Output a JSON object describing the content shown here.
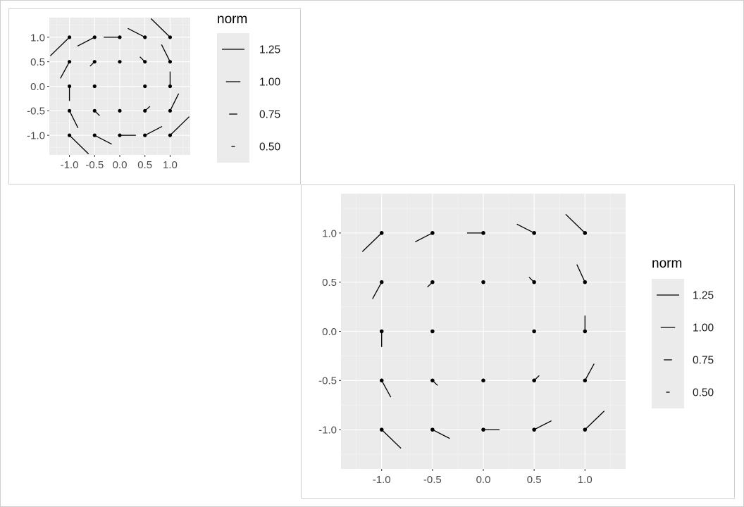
{
  "chart_data": [
    {
      "type": "vector-field",
      "xlim": [
        -1.4,
        1.4
      ],
      "ylim": [
        -1.4,
        1.4
      ],
      "x_breaks": [
        -1.0,
        -0.5,
        0.0,
        0.5,
        1.0
      ],
      "y_breaks": [
        -1.0,
        -0.5,
        0.0,
        0.5,
        1.0
      ],
      "x_tick_labels": [
        "-1.0",
        "-0.5",
        "0.0",
        "0.5",
        "1.0"
      ],
      "y_tick_labels": [
        "-1.0",
        "-0.5",
        "0.0",
        "0.5",
        "1.0"
      ],
      "grid": true,
      "legend": {
        "title": "norm",
        "position": "right",
        "entries": [
          {
            "label": "1.25",
            "value": 1.25
          },
          {
            "label": "1.00",
            "value": 1.0
          },
          {
            "label": "0.75",
            "value": 0.75
          },
          {
            "label": "0.50",
            "value": 0.5
          }
        ]
      },
      "points": [
        {
          "x": -1.0,
          "y": 1.0,
          "dx": -0.38,
          "dy": -0.38
        },
        {
          "x": -0.5,
          "y": 1.0,
          "dx": -0.34,
          "dy": -0.18
        },
        {
          "x": 0.0,
          "y": 1.0,
          "dx": -0.32,
          "dy": 0.0
        },
        {
          "x": 0.5,
          "y": 1.0,
          "dx": -0.34,
          "dy": 0.18
        },
        {
          "x": 1.0,
          "y": 1.0,
          "dx": -0.38,
          "dy": 0.38
        },
        {
          "x": -1.0,
          "y": 0.5,
          "dx": -0.18,
          "dy": -0.34
        },
        {
          "x": -0.5,
          "y": 0.5,
          "dx": -0.09,
          "dy": -0.09
        },
        {
          "x": 0.0,
          "y": 0.5,
          "dx": 0.0,
          "dy": 0.0
        },
        {
          "x": 0.5,
          "y": 0.5,
          "dx": -0.1,
          "dy": 0.1
        },
        {
          "x": 1.0,
          "y": 0.5,
          "dx": -0.17,
          "dy": 0.35
        },
        {
          "x": -1.0,
          "y": 0.0,
          "dx": 0.0,
          "dy": -0.3
        },
        {
          "x": -0.5,
          "y": 0.0,
          "dx": 0.0,
          "dy": 0.0
        },
        {
          "x": 0.5,
          "y": 0.0,
          "dx": 0.0,
          "dy": 0.0
        },
        {
          "x": 1.0,
          "y": 0.0,
          "dx": 0.0,
          "dy": 0.3
        },
        {
          "x": -1.0,
          "y": -0.5,
          "dx": 0.17,
          "dy": -0.35
        },
        {
          "x": -0.5,
          "y": -0.5,
          "dx": 0.1,
          "dy": -0.1
        },
        {
          "x": 0.0,
          "y": -0.5,
          "dx": 0.0,
          "dy": 0.0
        },
        {
          "x": 0.5,
          "y": -0.5,
          "dx": 0.1,
          "dy": 0.09
        },
        {
          "x": 1.0,
          "y": -0.5,
          "dx": 0.17,
          "dy": 0.35
        },
        {
          "x": -1.0,
          "y": -1.0,
          "dx": 0.38,
          "dy": -0.38
        },
        {
          "x": -0.5,
          "y": -1.0,
          "dx": 0.34,
          "dy": -0.18
        },
        {
          "x": 0.0,
          "y": -1.0,
          "dx": 0.32,
          "dy": 0.0
        },
        {
          "x": 0.5,
          "y": -1.0,
          "dx": 0.34,
          "dy": 0.18
        },
        {
          "x": 1.0,
          "y": -1.0,
          "dx": 0.38,
          "dy": 0.38
        }
      ]
    },
    {
      "type": "vector-field",
      "xlim": [
        -1.4,
        1.4
      ],
      "ylim": [
        -1.4,
        1.4
      ],
      "x_breaks": [
        -1.0,
        -0.5,
        0.0,
        0.5,
        1.0
      ],
      "y_breaks": [
        -1.0,
        -0.5,
        0.0,
        0.5,
        1.0
      ],
      "x_tick_labels": [
        "-1.0",
        "-0.5",
        "0.0",
        "0.5",
        "1.0"
      ],
      "y_tick_labels": [
        "-1.0",
        "-0.5",
        "0.0",
        "0.5",
        "1.0"
      ],
      "grid": true,
      "legend": {
        "title": "norm",
        "position": "right",
        "entries": [
          {
            "label": "1.25",
            "value": 1.25
          },
          {
            "label": "1.00",
            "value": 1.0
          },
          {
            "label": "0.75",
            "value": 0.75
          },
          {
            "label": "0.50",
            "value": 0.5
          }
        ]
      },
      "points": [
        {
          "x": -1.0,
          "y": 1.0,
          "dx": -0.19,
          "dy": -0.19
        },
        {
          "x": -0.5,
          "y": 1.0,
          "dx": -0.17,
          "dy": -0.09
        },
        {
          "x": 0.0,
          "y": 1.0,
          "dx": -0.16,
          "dy": 0.0
        },
        {
          "x": 0.5,
          "y": 1.0,
          "dx": -0.17,
          "dy": 0.09
        },
        {
          "x": 1.0,
          "y": 1.0,
          "dx": -0.19,
          "dy": 0.19
        },
        {
          "x": -1.0,
          "y": 0.5,
          "dx": -0.09,
          "dy": -0.17
        },
        {
          "x": -0.5,
          "y": 0.5,
          "dx": -0.05,
          "dy": -0.05
        },
        {
          "x": 0.0,
          "y": 0.5,
          "dx": 0.0,
          "dy": 0.0
        },
        {
          "x": 0.5,
          "y": 0.5,
          "dx": -0.05,
          "dy": 0.05
        },
        {
          "x": 1.0,
          "y": 0.5,
          "dx": -0.08,
          "dy": 0.18
        },
        {
          "x": -1.0,
          "y": 0.0,
          "dx": 0.0,
          "dy": -0.16
        },
        {
          "x": -0.5,
          "y": 0.0,
          "dx": 0.0,
          "dy": 0.0
        },
        {
          "x": 0.5,
          "y": 0.0,
          "dx": 0.0,
          "dy": 0.0
        },
        {
          "x": 1.0,
          "y": 0.0,
          "dx": 0.0,
          "dy": 0.16
        },
        {
          "x": -1.0,
          "y": -0.5,
          "dx": 0.09,
          "dy": -0.17
        },
        {
          "x": -0.5,
          "y": -0.5,
          "dx": 0.05,
          "dy": -0.05
        },
        {
          "x": 0.0,
          "y": -0.5,
          "dx": 0.0,
          "dy": 0.0
        },
        {
          "x": 0.5,
          "y": -0.5,
          "dx": 0.05,
          "dy": 0.05
        },
        {
          "x": 1.0,
          "y": -0.5,
          "dx": 0.09,
          "dy": 0.17
        },
        {
          "x": -1.0,
          "y": -1.0,
          "dx": 0.19,
          "dy": -0.19
        },
        {
          "x": -0.5,
          "y": -1.0,
          "dx": 0.17,
          "dy": -0.09
        },
        {
          "x": 0.0,
          "y": -1.0,
          "dx": 0.16,
          "dy": 0.0
        },
        {
          "x": 0.5,
          "y": -1.0,
          "dx": 0.17,
          "dy": 0.09
        },
        {
          "x": 1.0,
          "y": -1.0,
          "dx": 0.19,
          "dy": 0.19
        }
      ]
    }
  ],
  "colors": {
    "panel_background": "#ebebeb",
    "grid_major": "#ffffff",
    "grid_minor": "#f5f5f5",
    "segment": "#000000",
    "point": "#000000",
    "tick_text": "#4d4d4d",
    "frame": "#cfcfcf"
  }
}
